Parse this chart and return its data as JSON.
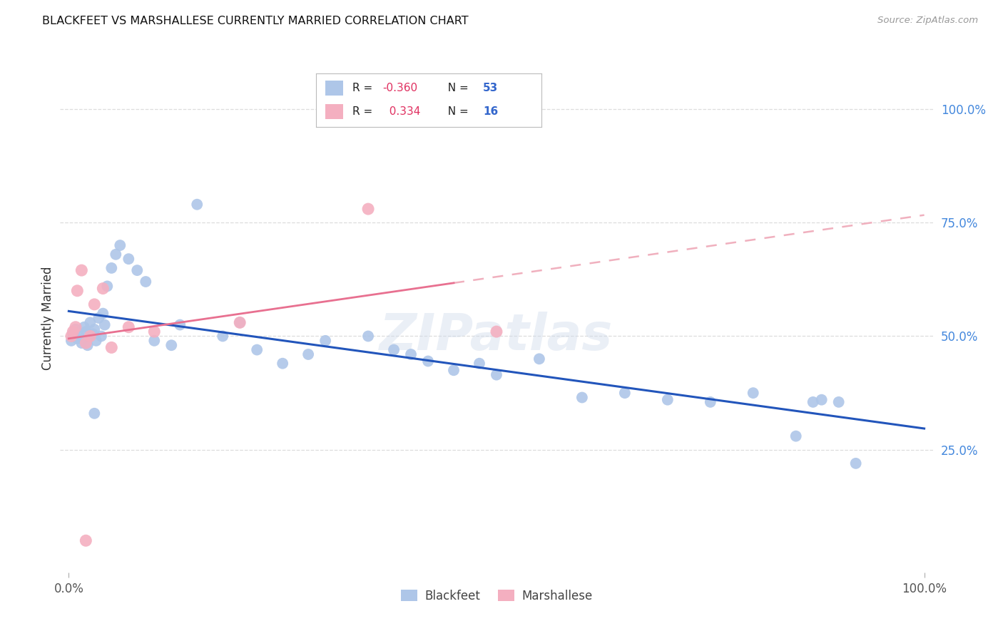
{
  "title": "BLACKFEET VS MARSHALLESE CURRENTLY MARRIED CORRELATION CHART",
  "source": "Source: ZipAtlas.com",
  "ylabel": "Currently Married",
  "blackfeet_R": -0.36,
  "blackfeet_N": 53,
  "marshallese_R": 0.334,
  "marshallese_N": 16,
  "blackfeet_color": "#aec6e8",
  "marshallese_color": "#f4afc0",
  "blackfeet_line_color": "#2255bb",
  "marshallese_solid_color": "#e87090",
  "marshallese_dash_color": "#f0b0be",
  "right_tick_color": "#4488dd",
  "legend_text_color": "#333333",
  "legend_R_color": "#e03060",
  "legend_N_color": "#3366cc",
  "background_color": "#ffffff",
  "grid_color": "#dddddd",
  "watermark": "ZIPatlas",
  "blackfeet_x": [
    0.3,
    0.5,
    0.8,
    1.0,
    1.2,
    1.5,
    1.8,
    2.0,
    2.2,
    2.5,
    2.8,
    3.0,
    3.2,
    3.5,
    3.8,
    4.0,
    4.2,
    4.5,
    5.0,
    5.5,
    6.0,
    7.0,
    8.0,
    9.0,
    10.0,
    12.0,
    13.0,
    15.0,
    18.0,
    20.0,
    22.0,
    25.0,
    28.0,
    30.0,
    35.0,
    38.0,
    40.0,
    42.0,
    45.0,
    48.0,
    50.0,
    55.0,
    60.0,
    65.0,
    70.0,
    75.0,
    80.0,
    85.0,
    87.0,
    88.0,
    90.0,
    92.0,
    3.0
  ],
  "blackfeet_y": [
    49.0,
    50.5,
    51.5,
    49.5,
    50.0,
    48.5,
    52.0,
    51.0,
    48.0,
    53.0,
    50.5,
    51.5,
    49.0,
    54.0,
    50.0,
    55.0,
    52.5,
    61.0,
    65.0,
    68.0,
    70.0,
    67.0,
    64.5,
    62.0,
    49.0,
    48.0,
    52.5,
    79.0,
    50.0,
    53.0,
    47.0,
    44.0,
    46.0,
    49.0,
    50.0,
    47.0,
    46.0,
    44.5,
    42.5,
    44.0,
    41.5,
    45.0,
    36.5,
    37.5,
    36.0,
    35.5,
    37.5,
    28.0,
    35.5,
    36.0,
    35.5,
    22.0,
    33.0
  ],
  "marshallese_x": [
    0.3,
    0.5,
    0.8,
    1.0,
    1.5,
    2.0,
    2.5,
    3.0,
    4.0,
    5.0,
    7.0,
    10.0,
    20.0,
    35.0,
    2.0,
    50.0
  ],
  "marshallese_y": [
    50.0,
    51.0,
    52.0,
    60.0,
    64.5,
    48.5,
    50.0,
    57.0,
    60.5,
    47.5,
    52.0,
    51.0,
    53.0,
    78.0,
    5.0,
    51.0
  ],
  "xlim": [
    0,
    100
  ],
  "ylim_min": -2,
  "ylim_max": 110,
  "ytick_vals": [
    25.0,
    50.0,
    75.0,
    100.0
  ],
  "ytick_labels": [
    "25.0%",
    "50.0%",
    "75.0%",
    "100.0%"
  ],
  "xtick_vals": [
    0,
    100
  ],
  "xtick_labels": [
    "0.0%",
    "100.0%"
  ]
}
